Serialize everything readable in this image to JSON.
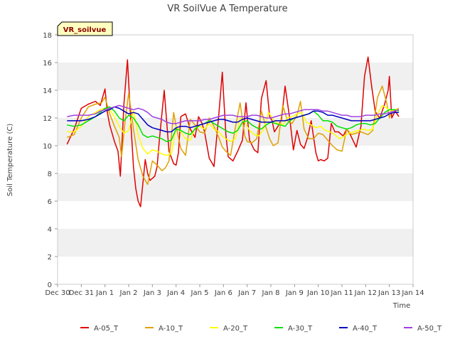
{
  "chart_data": {
    "type": "line",
    "title": "VR SoilVue A Temperature",
    "xlabel": "Time",
    "ylabel": "Soil Temperature (C)",
    "ylim": [
      0,
      18
    ],
    "yticks": [
      0,
      2,
      4,
      6,
      8,
      10,
      12,
      14,
      16,
      18
    ],
    "xlim": [
      0,
      15
    ],
    "xtick_labels": [
      "Dec 30",
      "Dec 31",
      "Jan 1",
      "Jan 2",
      "Jan 3",
      "Jan 4",
      "Jan 5",
      "Jan 6",
      "Jan 7",
      "Jan 8",
      "Jan 9",
      "Jan 10",
      "Jan 11",
      "Jan 12",
      "Jan 13",
      "Jan 14"
    ],
    "station_label": "VR_soilvue",
    "grid": "horizontal bands",
    "legend_position": "bottom",
    "series": [
      {
        "name": "A-05_T",
        "color": "#e00000",
        "x": [
          0.4,
          0.7,
          1.0,
          1.3,
          1.6,
          1.8,
          2.0,
          2.1,
          2.2,
          2.4,
          2.55,
          2.65,
          2.8,
          2.95,
          3.1,
          3.2,
          3.3,
          3.4,
          3.5,
          3.7,
          3.8,
          3.9,
          4.1,
          4.2,
          4.3,
          4.5,
          4.7,
          4.9,
          5.0,
          5.1,
          5.2,
          5.4,
          5.6,
          5.8,
          5.95,
          6.1,
          6.2,
          6.4,
          6.5,
          6.6,
          6.8,
          6.95,
          7.1,
          7.2,
          7.4,
          7.6,
          7.8,
          7.95,
          8.1,
          8.3,
          8.45,
          8.6,
          8.8,
          8.95,
          9.05,
          9.15,
          9.3,
          9.45,
          9.6,
          9.8,
          9.95,
          10.1,
          10.25,
          10.4,
          10.55,
          10.7,
          10.9,
          11.0,
          11.1,
          11.25,
          11.4,
          11.55,
          11.7,
          11.85,
          12.05,
          12.2,
          12.35,
          12.6,
          12.8,
          12.95,
          13.1,
          13.25,
          13.4,
          13.5,
          13.6,
          13.8,
          13.95,
          14.0,
          14.1,
          14.25,
          14.4
        ],
        "values": [
          10.1,
          11.2,
          12.7,
          13.0,
          13.2,
          12.9,
          14.1,
          12.4,
          11.5,
          10.3,
          9.6,
          7.8,
          13.0,
          16.2,
          11.4,
          8.5,
          6.9,
          6.0,
          5.6,
          9.0,
          8.0,
          7.5,
          7.8,
          8.5,
          10.5,
          14.0,
          9.6,
          8.7,
          8.6,
          9.5,
          12.1,
          12.3,
          11.2,
          10.6,
          12.1,
          11.6,
          11.0,
          9.1,
          8.8,
          8.5,
          12.2,
          15.3,
          10.8,
          9.2,
          8.9,
          9.6,
          10.4,
          13.1,
          10.4,
          9.7,
          9.5,
          13.4,
          14.7,
          12.1,
          11.8,
          11.0,
          11.4,
          11.9,
          14.3,
          11.9,
          9.7,
          11.1,
          10.1,
          9.8,
          10.6,
          11.8,
          9.5,
          8.9,
          9.0,
          8.9,
          9.1,
          11.6,
          11.0,
          11.0,
          10.7,
          11.2,
          10.8,
          9.9,
          11.4,
          15.0,
          16.4,
          14.3,
          12.5,
          12.2,
          12.0,
          13.0,
          14.0,
          15.0,
          12.0,
          12.5,
          12.1
        ]
      },
      {
        "name": "A-10_T",
        "color": "#e0a000",
        "x": [
          0.4,
          0.7,
          1.0,
          1.3,
          1.6,
          1.85,
          2.0,
          2.2,
          2.4,
          2.6,
          2.7,
          2.85,
          3.0,
          3.2,
          3.4,
          3.6,
          3.8,
          4.0,
          4.2,
          4.4,
          4.55,
          4.7,
          4.9,
          5.0,
          5.2,
          5.4,
          5.6,
          5.8,
          6.0,
          6.2,
          6.4,
          6.6,
          6.8,
          6.95,
          7.1,
          7.3,
          7.5,
          7.7,
          7.9,
          8.0,
          8.2,
          8.4,
          8.6,
          8.8,
          8.95,
          9.1,
          9.3,
          9.5,
          9.7,
          9.9,
          10.1,
          10.25,
          10.4,
          10.6,
          10.8,
          11.0,
          11.2,
          11.4,
          11.6,
          11.8,
          12.0,
          12.2,
          12.4,
          12.6,
          12.8,
          12.95,
          13.1,
          13.3,
          13.5,
          13.7,
          13.9,
          14.0,
          14.1,
          14.25,
          14.4
        ],
        "values": [
          10.6,
          10.8,
          12.0,
          12.8,
          13.0,
          13.1,
          13.5,
          12.3,
          11.4,
          10.6,
          9.2,
          11.8,
          13.8,
          11.2,
          9.0,
          7.8,
          7.2,
          8.9,
          8.6,
          8.2,
          8.4,
          8.9,
          12.4,
          11.4,
          9.8,
          9.3,
          11.9,
          11.5,
          11.0,
          10.9,
          12.0,
          11.4,
          10.6,
          9.9,
          9.6,
          9.3,
          11.3,
          13.1,
          10.7,
          10.3,
          10.2,
          10.5,
          12.5,
          11.3,
          10.5,
          10.0,
          10.2,
          12.9,
          11.8,
          11.6,
          12.2,
          13.2,
          11.2,
          10.5,
          10.5,
          10.9,
          10.8,
          10.4,
          10.0,
          9.7,
          9.6,
          11.2,
          10.8,
          10.9,
          11.0,
          10.9,
          10.8,
          11.1,
          13.5,
          14.3,
          13.0,
          12.0,
          12.5,
          12.6,
          12.7
        ]
      },
      {
        "name": "A-20_T",
        "color": "#ffff00",
        "x": [
          0.4,
          0.7,
          1.0,
          1.3,
          1.6,
          1.8,
          2.0,
          2.2,
          2.4,
          2.6,
          2.8,
          3.0,
          3.2,
          3.4,
          3.6,
          3.8,
          4.0,
          4.2,
          4.4,
          4.6,
          4.8,
          5.0,
          5.2,
          5.4,
          5.6,
          5.8,
          6.0,
          6.2,
          6.4,
          6.6,
          6.8,
          6.95,
          7.1,
          7.3,
          7.5,
          7.7,
          7.9,
          8.1,
          8.3,
          8.5,
          8.7,
          8.9,
          9.1,
          9.3,
          9.5,
          9.7,
          9.9,
          10.1,
          10.3,
          10.5,
          10.7,
          10.9,
          11.1,
          11.3,
          11.5,
          11.7,
          11.9,
          12.1,
          12.3,
          12.5,
          12.7,
          12.9,
          13.1,
          13.3,
          13.5,
          13.7,
          13.9,
          14.1,
          14.25,
          14.4
        ],
        "values": [
          11.0,
          11.0,
          11.4,
          12.1,
          12.4,
          12.6,
          12.7,
          12.6,
          12.1,
          11.4,
          10.9,
          11.1,
          12.5,
          10.8,
          9.8,
          9.4,
          9.7,
          9.6,
          9.4,
          9.3,
          9.4,
          11.4,
          11.0,
          10.5,
          10.4,
          11.3,
          11.4,
          11.2,
          11.6,
          11.2,
          11.0,
          10.7,
          10.5,
          10.3,
          10.5,
          12.0,
          11.7,
          11.1,
          10.8,
          10.7,
          11.2,
          12.4,
          11.9,
          11.6,
          11.5,
          12.0,
          12.1,
          12.3,
          12.4,
          11.7,
          11.5,
          11.3,
          11.4,
          11.1,
          11.0,
          10.8,
          10.5,
          10.7,
          10.9,
          11.0,
          11.1,
          11.2,
          11.1,
          11.2,
          12.3,
          12.9,
          12.7,
          12.5,
          12.6,
          12.6
        ]
      },
      {
        "name": "A-30_T",
        "color": "#00e000",
        "x": [
          0.4,
          0.7,
          1.0,
          1.3,
          1.6,
          1.8,
          2.0,
          2.2,
          2.4,
          2.6,
          2.8,
          3.0,
          3.2,
          3.4,
          3.6,
          3.8,
          4.0,
          4.2,
          4.4,
          4.6,
          4.8,
          5.0,
          5.2,
          5.4,
          5.6,
          5.8,
          6.0,
          6.2,
          6.4,
          6.6,
          6.8,
          7.0,
          7.2,
          7.4,
          7.6,
          7.8,
          8.0,
          8.2,
          8.4,
          8.6,
          8.8,
          9.0,
          9.2,
          9.4,
          9.6,
          9.8,
          10.0,
          10.2,
          10.4,
          10.6,
          10.8,
          11.0,
          11.2,
          11.4,
          11.6,
          11.8,
          12.0,
          12.2,
          12.4,
          12.6,
          12.8,
          13.0,
          13.2,
          13.4,
          13.6,
          13.8,
          14.0,
          14.2,
          14.4
        ],
        "values": [
          11.5,
          11.4,
          11.5,
          11.8,
          12.1,
          12.4,
          12.7,
          12.8,
          12.5,
          12.0,
          11.8,
          12.2,
          12.0,
          11.5,
          10.8,
          10.6,
          10.7,
          10.6,
          10.5,
          10.3,
          10.4,
          11.2,
          11.1,
          10.9,
          10.8,
          11.2,
          11.5,
          11.6,
          11.8,
          11.6,
          11.4,
          11.2,
          11.0,
          10.9,
          11.1,
          11.7,
          11.8,
          11.5,
          11.3,
          11.2,
          11.5,
          11.7,
          11.6,
          11.5,
          11.4,
          11.8,
          12.0,
          12.1,
          12.2,
          12.3,
          12.5,
          12.2,
          11.8,
          11.8,
          11.7,
          11.4,
          11.3,
          11.2,
          11.3,
          11.5,
          11.6,
          11.6,
          11.5,
          11.6,
          12.0,
          12.4,
          12.6,
          12.6,
          12.5
        ]
      },
      {
        "name": "A-40_T",
        "color": "#0000c0",
        "x": [
          0.4,
          0.7,
          1.0,
          1.3,
          1.6,
          1.8,
          2.0,
          2.2,
          2.4,
          2.6,
          2.8,
          3.0,
          3.2,
          3.4,
          3.6,
          3.8,
          4.0,
          4.2,
          4.4,
          4.6,
          4.8,
          5.0,
          5.2,
          5.4,
          5.6,
          5.8,
          6.0,
          6.2,
          6.4,
          6.6,
          6.8,
          7.0,
          7.2,
          7.4,
          7.6,
          7.8,
          8.0,
          8.2,
          8.4,
          8.6,
          8.8,
          9.0,
          9.2,
          9.4,
          9.6,
          9.8,
          10.0,
          10.2,
          10.4,
          10.6,
          10.8,
          11.0,
          11.2,
          11.4,
          11.6,
          11.8,
          12.0,
          12.2,
          12.4,
          12.6,
          12.8,
          13.0,
          13.2,
          13.4,
          13.6,
          13.8,
          14.0,
          14.2,
          14.4
        ],
        "values": [
          11.8,
          11.8,
          11.8,
          11.9,
          12.1,
          12.3,
          12.5,
          12.6,
          12.8,
          12.7,
          12.5,
          12.3,
          12.4,
          12.3,
          11.9,
          11.5,
          11.3,
          11.2,
          11.1,
          11.0,
          11.0,
          11.3,
          11.4,
          11.4,
          11.3,
          11.4,
          11.5,
          11.6,
          11.7,
          11.8,
          11.9,
          11.9,
          11.8,
          11.7,
          11.7,
          11.9,
          12.0,
          11.9,
          11.8,
          11.7,
          11.7,
          11.7,
          11.8,
          11.8,
          11.8,
          11.9,
          12.0,
          12.1,
          12.2,
          12.3,
          12.5,
          12.5,
          12.4,
          12.2,
          12.2,
          12.1,
          12.0,
          11.9,
          11.8,
          11.8,
          11.8,
          11.8,
          11.8,
          11.9,
          12.0,
          12.1,
          12.3,
          12.4,
          12.4
        ]
      },
      {
        "name": "A-50_T",
        "color": "#a040e0",
        "x": [
          0.4,
          0.7,
          1.0,
          1.3,
          1.6,
          1.8,
          2.0,
          2.2,
          2.4,
          2.6,
          2.8,
          3.0,
          3.2,
          3.4,
          3.6,
          3.8,
          4.0,
          4.2,
          4.4,
          4.6,
          4.8,
          5.0,
          5.2,
          5.4,
          5.6,
          5.8,
          6.0,
          6.2,
          6.4,
          6.6,
          6.8,
          7.0,
          7.2,
          7.4,
          7.6,
          7.8,
          8.0,
          8.2,
          8.4,
          8.6,
          8.8,
          9.0,
          9.2,
          9.4,
          9.6,
          9.8,
          10.0,
          10.2,
          10.4,
          10.6,
          10.8,
          11.0,
          11.2,
          11.4,
          11.6,
          11.8,
          12.0,
          12.2,
          12.4,
          12.6,
          12.8,
          13.0,
          13.2,
          13.4,
          13.6,
          13.8,
          14.0,
          14.2,
          14.4
        ],
        "values": [
          12.1,
          12.2,
          12.2,
          12.2,
          12.3,
          12.5,
          12.6,
          12.7,
          12.8,
          12.9,
          12.8,
          12.7,
          12.6,
          12.7,
          12.6,
          12.4,
          12.1,
          12.0,
          11.9,
          11.7,
          11.6,
          11.6,
          11.7,
          11.8,
          11.8,
          11.8,
          11.8,
          11.9,
          11.9,
          12.0,
          12.1,
          12.2,
          12.2,
          12.2,
          12.1,
          12.1,
          12.1,
          12.2,
          12.2,
          12.1,
          12.0,
          12.0,
          12.1,
          12.2,
          12.3,
          12.3,
          12.4,
          12.5,
          12.6,
          12.6,
          12.6,
          12.6,
          12.5,
          12.5,
          12.4,
          12.3,
          12.2,
          12.2,
          12.1,
          12.1,
          12.1,
          12.2,
          12.2,
          12.2,
          12.3,
          12.3,
          12.4,
          12.5,
          12.6
        ]
      }
    ]
  }
}
